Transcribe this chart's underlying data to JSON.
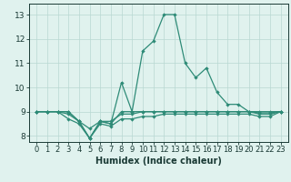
{
  "xlabel": "Humidex (Indice chaleur)",
  "x": [
    0,
    1,
    2,
    3,
    4,
    5,
    6,
    7,
    8,
    9,
    10,
    11,
    12,
    13,
    14,
    15,
    16,
    17,
    18,
    19,
    20,
    21,
    22,
    23
  ],
  "line_max": [
    9.0,
    9.0,
    9.0,
    9.0,
    8.6,
    7.9,
    8.6,
    8.5,
    10.2,
    9.0,
    11.5,
    11.9,
    13.0,
    13.0,
    11.0,
    10.4,
    10.8,
    9.8,
    9.3,
    9.3,
    9.0,
    8.9,
    8.9,
    9.0
  ],
  "line_main": [
    9.0,
    9.0,
    9.0,
    9.0,
    8.6,
    7.9,
    8.6,
    8.5,
    9.0,
    9.0,
    9.0,
    9.0,
    9.0,
    9.0,
    9.0,
    9.0,
    9.0,
    9.0,
    9.0,
    9.0,
    9.0,
    9.0,
    9.0,
    9.0
  ],
  "line_avg": [
    9.0,
    9.0,
    9.0,
    8.9,
    8.6,
    8.3,
    8.6,
    8.6,
    8.9,
    8.9,
    9.0,
    9.0,
    9.0,
    9.0,
    9.0,
    9.0,
    9.0,
    9.0,
    9.0,
    9.0,
    9.0,
    8.95,
    8.95,
    9.0
  ],
  "line_min": [
    9.0,
    9.0,
    9.0,
    8.7,
    8.5,
    7.9,
    8.5,
    8.4,
    8.7,
    8.7,
    8.8,
    8.8,
    8.9,
    8.9,
    8.9,
    8.9,
    8.9,
    8.9,
    8.9,
    8.9,
    8.9,
    8.8,
    8.8,
    9.0
  ],
  "line_color": "#2e8b77",
  "bg_color": "#e0f2ee",
  "grid_color": "#b8d8d2",
  "ylim": [
    7.75,
    13.45
  ],
  "yticks": [
    8,
    9,
    10,
    11,
    12,
    13
  ],
  "xticks": [
    0,
    1,
    2,
    3,
    4,
    5,
    6,
    7,
    8,
    9,
    10,
    11,
    12,
    13,
    14,
    15,
    16,
    17,
    18,
    19,
    20,
    21,
    22,
    23
  ],
  "tick_fontsize": 6.0,
  "xlabel_fontsize": 7.0
}
